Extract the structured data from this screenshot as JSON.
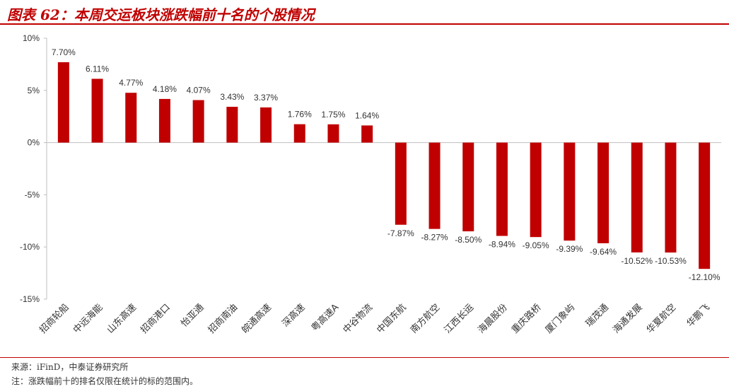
{
  "header": {
    "title": "图表 62：本周交运板块涨跌幅前十名的个股情况"
  },
  "footer": {
    "source": "来源：iFinD，中泰证券研究所",
    "note": "注：涨跌幅前十的排名仅限在统计的标的范围内。"
  },
  "colors": {
    "accent": "#c00000",
    "bar": "#c00000",
    "axis_text": "#333333",
    "axis_line": "#bfbfbf"
  },
  "chart_data": {
    "type": "bar",
    "title": "",
    "xlabel": "",
    "ylabel": "",
    "ylim": [
      -15,
      10
    ],
    "yticks": [
      {
        "value": 10,
        "label": "10%"
      },
      {
        "value": 5,
        "label": "5%"
      },
      {
        "value": 0,
        "label": "0%"
      },
      {
        "value": -5,
        "label": "-5%"
      },
      {
        "value": -10,
        "label": "-10%"
      },
      {
        "value": -15,
        "label": "-15%"
      }
    ],
    "grid": false,
    "legend": "none",
    "categories": [
      "招商轮船",
      "中远海能",
      "山东高速",
      "招商港口",
      "怡亚通",
      "招商南油",
      "皖通高速",
      "深高速",
      "粤高速A",
      "中谷物流",
      "中国东航",
      "南方航空",
      "江西长运",
      "海晨股份",
      "重庆路桥",
      "厦门象屿",
      "瑞茂通",
      "海通发展",
      "华夏航空",
      "华鹏飞"
    ],
    "values": [
      7.7,
      6.11,
      4.77,
      4.18,
      4.07,
      3.43,
      3.37,
      1.76,
      1.75,
      1.64,
      -7.87,
      -8.27,
      -8.5,
      -8.94,
      -9.05,
      -9.39,
      -9.64,
      -10.52,
      -10.53,
      -12.1
    ],
    "data_labels": [
      "7.70%",
      "6.11%",
      "4.77%",
      "4.18%",
      "4.07%",
      "3.43%",
      "3.37%",
      "1.76%",
      "1.75%",
      "1.64%",
      "-7.87%",
      "-8.27%",
      "-8.50%",
      "-8.94%",
      "-9.05%",
      "-9.39%",
      "-9.64%",
      "-10.52%",
      "-10.53%",
      "-12.10%"
    ]
  }
}
